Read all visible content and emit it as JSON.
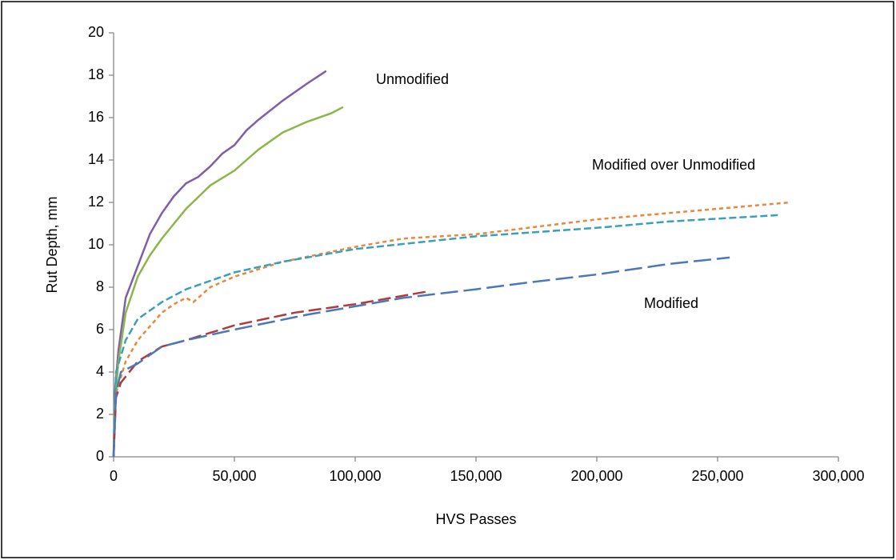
{
  "chart_data": {
    "type": "line",
    "xlabel": "HVS Passes",
    "ylabel": "Rut Depth, mm",
    "xlim": [
      0,
      300000
    ],
    "ylim": [
      0,
      20
    ],
    "xticks": [
      0,
      {
        "value": 50000,
        "label": "50,000"
      },
      {
        "value": 100000,
        "label": "100,000"
      },
      {
        "value": 150000,
        "label": "150,000"
      },
      {
        "value": 200000,
        "label": "200,000"
      },
      {
        "value": 250000,
        "label": "250,000"
      },
      {
        "value": 300000,
        "label": "300,000"
      }
    ],
    "yticks": [
      0,
      2,
      4,
      6,
      8,
      10,
      12,
      14,
      16,
      18,
      20
    ],
    "grid": false,
    "annotations": [
      "Unmodified",
      "Modified over Unmodified",
      "Modified"
    ],
    "series": [
      {
        "color": "#7f5fa8",
        "dash": "solid",
        "x": [
          0,
          500,
          2000,
          5000,
          10000,
          15000,
          20000,
          25000,
          30000,
          35000,
          40000,
          45000,
          50000,
          55000,
          60000,
          70000,
          80000,
          88000
        ],
        "values": [
          0,
          3,
          5,
          7.5,
          9,
          10.5,
          11.5,
          12.3,
          12.9,
          13.2,
          13.7,
          14.3,
          14.7,
          15.4,
          15.9,
          16.8,
          17.6,
          18.2
        ]
      },
      {
        "color": "#8cb54a",
        "dash": "solid",
        "x": [
          0,
          500,
          2000,
          5000,
          10000,
          15000,
          20000,
          25000,
          30000,
          40000,
          50000,
          60000,
          70000,
          80000,
          90000,
          95000
        ],
        "values": [
          0,
          2.5,
          4.5,
          6.8,
          8.5,
          9.5,
          10.3,
          11,
          11.7,
          12.8,
          13.5,
          14.5,
          15.3,
          15.8,
          16.2,
          16.5
        ]
      },
      {
        "color": "#e8883a",
        "dash": "short",
        "x": [
          0,
          1000,
          5000,
          10000,
          20000,
          25000,
          30000,
          33000,
          40000,
          50000,
          70000,
          100000,
          120000,
          150000,
          200000,
          250000,
          280000
        ],
        "values": [
          0,
          3,
          4.5,
          5.5,
          6.8,
          7.2,
          7.5,
          7.3,
          8,
          8.5,
          9.2,
          9.9,
          10.3,
          10.5,
          11.2,
          11.7,
          12
        ]
      },
      {
        "color": "#3aa0b8",
        "dash": "medium",
        "x": [
          0,
          1000,
          5000,
          10000,
          20000,
          30000,
          50000,
          70000,
          100000,
          150000,
          200000,
          230000,
          275000
        ],
        "values": [
          0,
          4,
          5.5,
          6.5,
          7.3,
          7.9,
          8.7,
          9.2,
          9.8,
          10.4,
          10.8,
          11.1,
          11.4
        ]
      },
      {
        "color": "#b23a3a",
        "dash": "long",
        "x": [
          0,
          1000,
          3000,
          10000,
          20000,
          30000,
          50000,
          75000,
          100000,
          120000,
          130000
        ],
        "values": [
          0,
          2.8,
          3.5,
          4.5,
          5.2,
          5.5,
          6.2,
          6.8,
          7.2,
          7.6,
          7.8
        ]
      },
      {
        "color": "#4a78b8",
        "dash": "dashdot",
        "x": [
          0,
          1000,
          3000,
          10000,
          20000,
          30000,
          50000,
          80000,
          100000,
          120000,
          150000,
          170000,
          200000,
          230000,
          255000
        ],
        "values": [
          0,
          3,
          4,
          4.4,
          5.2,
          5.5,
          6,
          6.7,
          7.1,
          7.5,
          7.9,
          8.2,
          8.6,
          9.1,
          9.4
        ]
      }
    ]
  }
}
